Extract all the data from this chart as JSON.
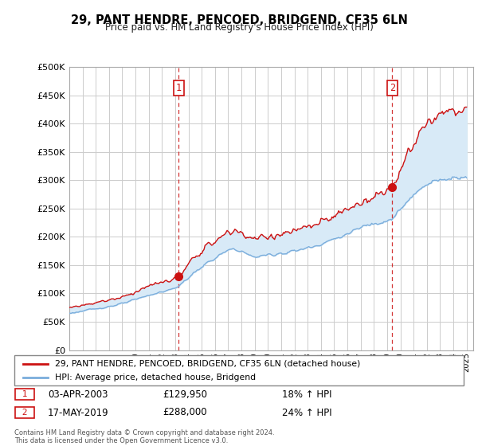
{
  "title": "29, PANT HENDRE, PENCOED, BRIDGEND, CF35 6LN",
  "subtitle": "Price paid vs. HM Land Registry's House Price Index (HPI)",
  "legend_line1": "29, PANT HENDRE, PENCOED, BRIDGEND, CF35 6LN (detached house)",
  "legend_line2": "HPI: Average price, detached house, Bridgend",
  "annotation1_date": "03-APR-2003",
  "annotation1_price": "£129,950",
  "annotation1_hpi": "18% ↑ HPI",
  "annotation2_date": "17-MAY-2019",
  "annotation2_price": "£288,000",
  "annotation2_hpi": "24% ↑ HPI",
  "footer": "Contains HM Land Registry data © Crown copyright and database right 2024.\nThis data is licensed under the Open Government Licence v3.0.",
  "vline1_x": 2003.25,
  "vline2_x": 2019.38,
  "dot1_x": 2003.25,
  "dot1_y": 129950,
  "dot2_x": 2019.38,
  "dot2_y": 288000,
  "ylim": [
    0,
    500000
  ],
  "xlim_start": 1995.0,
  "xlim_end": 2025.5,
  "hpi_color": "#7aaddc",
  "price_color": "#cc1111",
  "vline_color": "#cc1111",
  "fill_color": "#d8eaf7",
  "background_color": "#ffffff",
  "grid_color": "#cccccc"
}
